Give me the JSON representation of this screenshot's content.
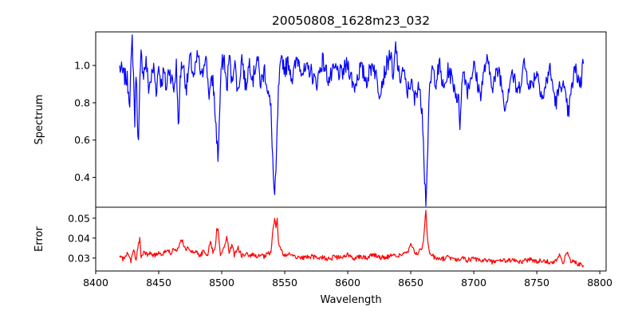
{
  "chart_data": [
    {
      "type": "line",
      "panel": "spectrum",
      "title": "20050808_1628m23_032",
      "xlabel": "",
      "ylabel": "Spectrum",
      "xlim": [
        8400,
        8805
      ],
      "ylim": [
        0.24,
        1.18
      ],
      "yticks": [
        0.4,
        0.6,
        0.8,
        1.0
      ],
      "ytick_labels": [
        "0.4",
        "0.6",
        "0.8",
        "1.0"
      ],
      "grid": false,
      "color": "#0000ff",
      "series": [
        {
          "x": [
            8419,
            8422,
            8425,
            8427,
            8428,
            8429,
            8430,
            8431,
            8432,
            8433,
            8434,
            8435,
            8436,
            8438,
            8440,
            8442,
            8444,
            8446,
            8448,
            8450,
            8452,
            8454,
            8456,
            8458,
            8460,
            8462,
            8464,
            8465,
            8466,
            8467,
            8469,
            8472,
            8475,
            8478,
            8481,
            8484,
            8487,
            8490,
            8493,
            8495,
            8496,
            8497,
            8498,
            8499,
            8500,
            8502,
            8504,
            8506,
            8508,
            8510,
            8513,
            8516,
            8519,
            8522,
            8525,
            8528,
            8531,
            8534,
            8537,
            8539,
            8540,
            8541,
            8542,
            8543,
            8544,
            8545,
            8546,
            8548,
            8550,
            8553,
            8556,
            8560,
            8565,
            8570,
            8575,
            8580,
            8585,
            8590,
            8595,
            8600,
            8605,
            8610,
            8615,
            8620,
            8625,
            8630,
            8634,
            8636,
            8638,
            8641,
            8644,
            8647,
            8650,
            8653,
            8656,
            8658,
            8659,
            8660,
            8661,
            8662,
            8663,
            8664,
            8665,
            8667,
            8670,
            8673,
            8676,
            8680,
            8684,
            8688,
            8689,
            8690,
            8692,
            8695,
            8700,
            8705,
            8710,
            8715,
            8720,
            8725,
            8730,
            8735,
            8740,
            8745,
            8750,
            8755,
            8760,
            8765,
            8770,
            8775,
            8780,
            8785,
            8787
          ],
          "y": [
            0.99,
            0.95,
            0.92,
            0.82,
            0.98,
            1.14,
            0.95,
            0.7,
            0.98,
            0.75,
            0.58,
            0.88,
            1.05,
            0.96,
            1.02,
            0.88,
            0.93,
            0.99,
            0.86,
            1.0,
            0.9,
            0.97,
            0.87,
            0.99,
            0.94,
            0.87,
            1.0,
            0.8,
            0.66,
            0.95,
            1.02,
            0.88,
            1.04,
            0.93,
            1.06,
            0.92,
            1.07,
            0.85,
            0.93,
            0.72,
            0.62,
            0.5,
            0.68,
            0.88,
            1.0,
            1.04,
            0.86,
            1.06,
            0.9,
            1.03,
            0.85,
            1.05,
            0.88,
            1.02,
            0.93,
            1.05,
            0.9,
            0.98,
            0.85,
            0.76,
            0.6,
            0.4,
            0.28,
            0.42,
            0.65,
            0.85,
            0.95,
            1.04,
            0.98,
            1.02,
            0.93,
            1.04,
            0.96,
            0.98,
            0.9,
            1.03,
            0.92,
            0.98,
            0.95,
            1.01,
            0.88,
            0.99,
            0.92,
            1.02,
            0.86,
            0.98,
            1.07,
            0.9,
            1.11,
            0.92,
            0.98,
            0.85,
            0.92,
            0.81,
            0.91,
            0.8,
            0.78,
            0.62,
            0.4,
            0.28,
            0.45,
            0.7,
            0.86,
            0.98,
            0.92,
            1.0,
            0.86,
            0.98,
            0.9,
            0.8,
            0.69,
            0.85,
            0.98,
            0.87,
            1.0,
            0.84,
            1.03,
            0.9,
            0.98,
            0.78,
            0.97,
            0.85,
            1.01,
            0.88,
            0.97,
            0.82,
            0.99,
            0.8,
            0.92,
            0.74,
            0.98,
            0.9,
            1.05
          ],
          "noise": 0.05
        }
      ]
    },
    {
      "type": "line",
      "panel": "error",
      "title": "",
      "xlabel": "Wavelength",
      "ylabel": "Error",
      "xlim": [
        8400,
        8805
      ],
      "ylim": [
        0.0235,
        0.0555
      ],
      "xticks": [
        8400,
        8450,
        8500,
        8550,
        8600,
        8650,
        8700,
        8750,
        8800
      ],
      "xtick_labels": [
        "8400",
        "8450",
        "8500",
        "8550",
        "8600",
        "8650",
        "8700",
        "8750",
        "8800"
      ],
      "yticks": [
        0.03,
        0.04,
        0.05
      ],
      "ytick_labels": [
        "0.03",
        "0.04",
        "0.05"
      ],
      "grid": false,
      "color": "#ff0000",
      "series": [
        {
          "x": [
            8419,
            8422,
            8425,
            8428,
            8430,
            8432,
            8434,
            8435,
            8436,
            8438,
            8441,
            8444,
            8447,
            8450,
            8453,
            8456,
            8459,
            8462,
            8464,
            8466,
            8468,
            8471,
            8474,
            8477,
            8480,
            8483,
            8486,
            8489,
            8491,
            8493,
            8495,
            8496,
            8497,
            8498,
            8499,
            8500,
            8502,
            8504,
            8506,
            8508,
            8510,
            8513,
            8516,
            8519,
            8522,
            8525,
            8528,
            8531,
            8534,
            8537,
            8539,
            8540,
            8541,
            8542,
            8543,
            8544,
            8545,
            8547,
            8550,
            8555,
            8560,
            8565,
            8570,
            8575,
            8580,
            8585,
            8590,
            8595,
            8600,
            8605,
            8610,
            8615,
            8620,
            8625,
            8630,
            8635,
            8640,
            8645,
            8648,
            8650,
            8652,
            8655,
            8658,
            8660,
            8661,
            8662,
            8663,
            8664,
            8665,
            8667,
            8670,
            8675,
            8680,
            8685,
            8690,
            8695,
            8700,
            8705,
            8710,
            8715,
            8720,
            8725,
            8730,
            8735,
            8740,
            8745,
            8750,
            8755,
            8760,
            8765,
            8768,
            8771,
            8774,
            8777,
            8780,
            8783,
            8787
          ],
          "y": [
            0.0305,
            0.0295,
            0.0325,
            0.0285,
            0.035,
            0.029,
            0.037,
            0.0395,
            0.03,
            0.033,
            0.0315,
            0.0325,
            0.031,
            0.033,
            0.032,
            0.034,
            0.0325,
            0.0345,
            0.033,
            0.035,
            0.04,
            0.034,
            0.0355,
            0.0325,
            0.0335,
            0.031,
            0.034,
            0.0315,
            0.039,
            0.0325,
            0.036,
            0.044,
            0.0455,
            0.038,
            0.032,
            0.033,
            0.035,
            0.041,
            0.0325,
            0.037,
            0.0315,
            0.035,
            0.031,
            0.0325,
            0.0305,
            0.032,
            0.03,
            0.0315,
            0.0305,
            0.0325,
            0.032,
            0.039,
            0.046,
            0.0505,
            0.045,
            0.05,
            0.038,
            0.034,
            0.031,
            0.032,
            0.0305,
            0.03,
            0.031,
            0.03,
            0.0305,
            0.0295,
            0.0305,
            0.03,
            0.0315,
            0.03,
            0.031,
            0.03,
            0.032,
            0.0305,
            0.03,
            0.0315,
            0.031,
            0.0325,
            0.033,
            0.037,
            0.034,
            0.032,
            0.034,
            0.038,
            0.046,
            0.0535,
            0.042,
            0.036,
            0.033,
            0.031,
            0.03,
            0.0295,
            0.0305,
            0.029,
            0.03,
            0.029,
            0.0295,
            0.0285,
            0.029,
            0.028,
            0.029,
            0.0285,
            0.029,
            0.028,
            0.0285,
            0.0295,
            0.028,
            0.029,
            0.028,
            0.0285,
            0.031,
            0.0275,
            0.033,
            0.028,
            0.0285,
            0.027,
            0.026
          ],
          "noise": 0.0012
        }
      ]
    }
  ]
}
